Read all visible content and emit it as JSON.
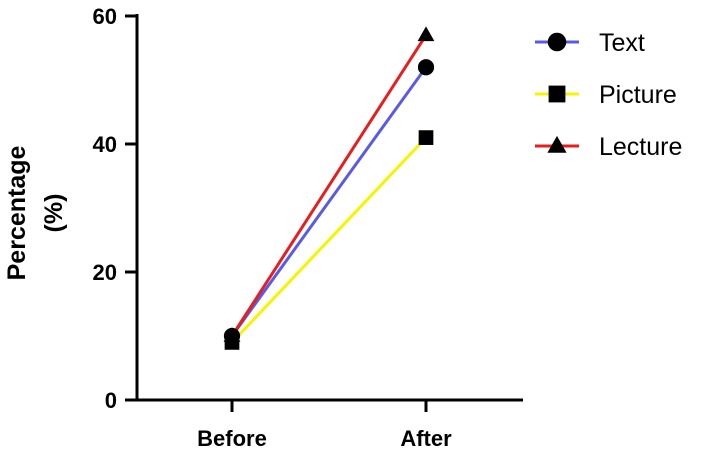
{
  "chart_data": {
    "type": "line",
    "categories": [
      "Before",
      "After"
    ],
    "series": [
      {
        "name": "Text",
        "values": [
          10,
          52
        ],
        "color": "#5a5ae6",
        "marker": "circle"
      },
      {
        "name": "Picture",
        "values": [
          9,
          41
        ],
        "color": "#f5f500",
        "marker": "square"
      },
      {
        "name": "Lecture",
        "values": [
          10,
          57
        ],
        "color": "#e61e1e",
        "marker": "triangle"
      }
    ],
    "ylabel_lines": [
      "Percentage",
      "(%)"
    ],
    "xlabel": "",
    "ylim": [
      0,
      60
    ],
    "yticks": [
      0,
      20,
      40,
      60
    ],
    "grid": false,
    "legend_position": "top-right"
  }
}
